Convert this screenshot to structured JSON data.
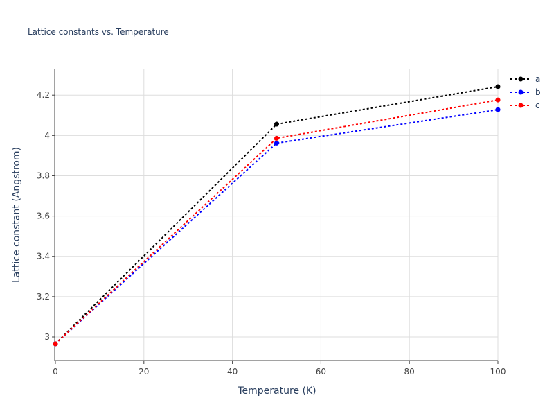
{
  "chart_data": {
    "type": "line",
    "title": "Lattice constants vs. Temperature",
    "x_label": "Temperature (K)",
    "y_label": "Lattice constant (Angstrom)",
    "x": [
      0,
      50,
      100
    ],
    "series": [
      {
        "name": "a",
        "color": "#000000",
        "values": [
          2.966,
          4.056,
          4.242
        ]
      },
      {
        "name": "b",
        "color": "#0000ff",
        "values": [
          2.966,
          3.962,
          4.128
        ]
      },
      {
        "name": "c",
        "color": "#ff0000",
        "values": [
          2.966,
          3.986,
          4.176
        ]
      }
    ],
    "xlim": [
      0,
      100
    ],
    "xticks": [
      0,
      20,
      40,
      60,
      80,
      100
    ],
    "ylim": [
      2.883,
      4.328
    ],
    "yticks": [
      3,
      3.2,
      3.4,
      3.6,
      3.8,
      4,
      4.2
    ],
    "grid": true,
    "legend": "right"
  }
}
